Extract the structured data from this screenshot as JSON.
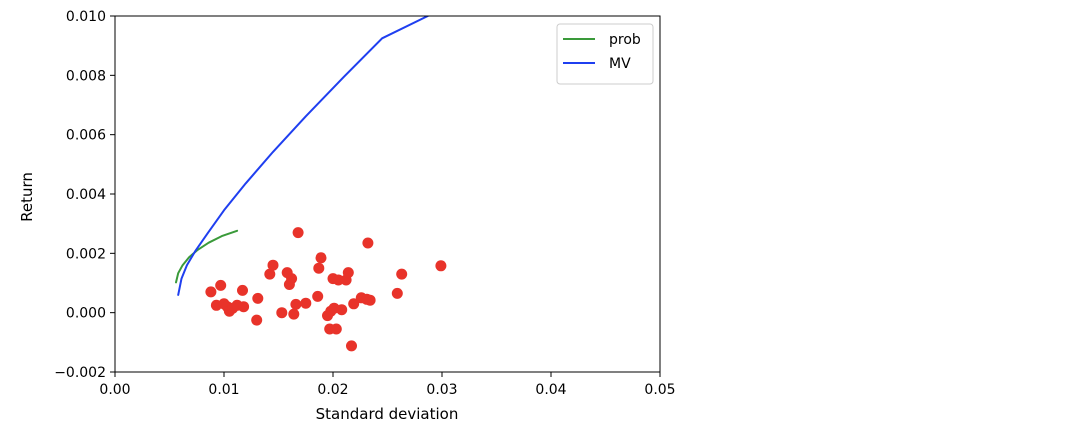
{
  "chart_data": {
    "type": "scatter",
    "xlabel": "Standard deviation",
    "ylabel": "Return",
    "xlim": [
      0.0,
      0.05
    ],
    "ylim": [
      -0.002,
      0.01
    ],
    "xticks": [
      0.0,
      0.01,
      0.02,
      0.03,
      0.04,
      0.05
    ],
    "xtick_labels": [
      "0.00",
      "0.01",
      "0.02",
      "0.03",
      "0.04",
      "0.05"
    ],
    "yticks": [
      -0.002,
      0.0,
      0.002,
      0.004,
      0.006,
      0.008,
      0.01
    ],
    "ytick_labels": [
      "−0.002",
      "0.000",
      "0.002",
      "0.004",
      "0.006",
      "0.008",
      "0.010"
    ],
    "grid": false,
    "legend_position": "top-right",
    "series": [
      {
        "name": "prob",
        "kind": "line",
        "color": "#3a9a3a",
        "points": [
          [
            0.0056,
            0.00102
          ],
          [
            0.0058,
            0.00133
          ],
          [
            0.0062,
            0.0016
          ],
          [
            0.0068,
            0.00187
          ],
          [
            0.0076,
            0.00212
          ],
          [
            0.0086,
            0.00236
          ],
          [
            0.0098,
            0.00258
          ],
          [
            0.0112,
            0.00276
          ]
        ]
      },
      {
        "name": "MV",
        "kind": "line",
        "color": "#1f3ff0",
        "points": [
          [
            0.0058,
            0.0006
          ],
          [
            0.0061,
            0.00115
          ],
          [
            0.0066,
            0.0016
          ],
          [
            0.0074,
            0.0021
          ],
          [
            0.0085,
            0.00268
          ],
          [
            0.01,
            0.00345
          ],
          [
            0.012,
            0.00436
          ],
          [
            0.0145,
            0.00542
          ],
          [
            0.0175,
            0.00662
          ],
          [
            0.021,
            0.00795
          ],
          [
            0.0245,
            0.00925
          ],
          [
            0.0287,
            0.01
          ]
        ]
      },
      {
        "name": "",
        "kind": "scatter",
        "color": "#e8332a",
        "points": [
          [
            0.0088,
            0.0007
          ],
          [
            0.0093,
            0.00025
          ],
          [
            0.0097,
            0.00092
          ],
          [
            0.01,
            0.0003
          ],
          [
            0.0103,
            0.0002
          ],
          [
            0.0105,
            5e-05
          ],
          [
            0.0108,
            0.00015
          ],
          [
            0.0112,
            0.00025
          ],
          [
            0.0117,
            0.00075
          ],
          [
            0.0118,
            0.0002
          ],
          [
            0.013,
            -0.00025
          ],
          [
            0.0131,
            0.00048
          ],
          [
            0.0142,
            0.0013
          ],
          [
            0.0145,
            0.0016
          ],
          [
            0.0153,
            0.0
          ],
          [
            0.0158,
            0.00135
          ],
          [
            0.016,
            0.00095
          ],
          [
            0.0162,
            0.00115
          ],
          [
            0.0164,
            -5e-05
          ],
          [
            0.0166,
            0.00028
          ],
          [
            0.0168,
            0.0027
          ],
          [
            0.0175,
            0.00032
          ],
          [
            0.0186,
            0.00055
          ],
          [
            0.0187,
            0.0015
          ],
          [
            0.0189,
            0.00185
          ],
          [
            0.0195,
            -0.0001
          ],
          [
            0.0197,
            -0.00055
          ],
          [
            0.0198,
            5e-05
          ],
          [
            0.02,
            0.00115
          ],
          [
            0.0201,
            0.00015
          ],
          [
            0.0203,
            -0.00055
          ],
          [
            0.0205,
            0.0011
          ],
          [
            0.0208,
            0.0001
          ],
          [
            0.0212,
            0.0011
          ],
          [
            0.0214,
            0.00135
          ],
          [
            0.0217,
            -0.00112
          ],
          [
            0.0219,
            0.0003
          ],
          [
            0.0226,
            0.0005
          ],
          [
            0.0231,
            0.00045
          ],
          [
            0.0232,
            0.00235
          ],
          [
            0.0234,
            0.00042
          ],
          [
            0.0259,
            0.00065
          ],
          [
            0.0263,
            0.0013
          ],
          [
            0.0299,
            0.00158
          ]
        ]
      }
    ]
  }
}
